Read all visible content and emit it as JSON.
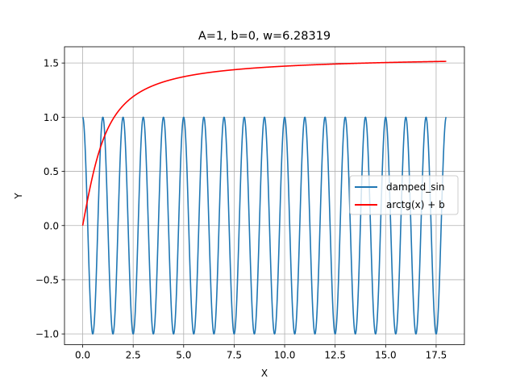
{
  "chart_data": {
    "type": "line",
    "title": "A=1, b=0, w=6.28319",
    "xlabel": "X",
    "ylabel": "Y",
    "xlim": [
      -0.9,
      18.9
    ],
    "ylim": [
      -1.1,
      1.65
    ],
    "xticks": [
      0.0,
      2.5,
      5.0,
      7.5,
      10.0,
      12.5,
      15.0,
      17.5
    ],
    "xtick_labels": [
      "0.0",
      "2.5",
      "5.0",
      "7.5",
      "10.0",
      "12.5",
      "15.0",
      "17.5"
    ],
    "yticks": [
      -1.0,
      -0.5,
      0.0,
      0.5,
      1.0,
      1.5
    ],
    "ytick_labels": [
      "−1.0",
      "−0.5",
      "0.0",
      "0.5",
      "1.0",
      "1.5"
    ],
    "grid": true,
    "legend_position": "center-right",
    "series": [
      {
        "name": "damped_sin",
        "color": "#1f77b4",
        "function": "A*cos(w*x)",
        "params": {
          "A": 1,
          "w": 6.28319
        },
        "x_range": [
          0,
          18
        ]
      },
      {
        "name": "arctg(x) + b",
        "color": "#ff0000",
        "function": "arctan(x) + b",
        "params": {
          "b": 0
        },
        "x_range": [
          0,
          18
        ]
      }
    ]
  }
}
